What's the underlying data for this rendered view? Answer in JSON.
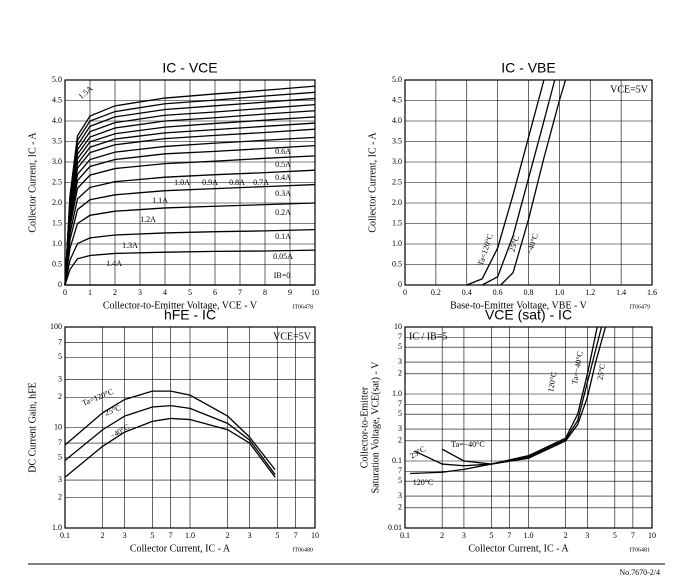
{
  "chart_data": [
    {
      "type": "line",
      "title": "IC - VCE",
      "xlabel": "Collector-to-Emitter Voltage, VCE - V",
      "ylabel": "Collector Current, IC - A",
      "code": "IT06478",
      "color": "#000000",
      "grid": true,
      "xlim": [
        0,
        10
      ],
      "xticks": [
        0,
        1,
        2,
        3,
        4,
        5,
        6,
        7,
        8,
        9,
        10
      ],
      "ylim": [
        0,
        5
      ],
      "yticks": [
        0,
        0.5,
        {
          "value": 1,
          "label": "1.0"
        },
        1.5,
        {
          "value": 2,
          "label": "2.0"
        },
        2.5,
        {
          "value": 3,
          "label": "3.0"
        },
        3.5,
        {
          "value": 4,
          "label": "4.0"
        },
        4.5,
        {
          "value": 5,
          "label": "5.0"
        }
      ],
      "x": [
        0,
        0.2,
        0.5,
        1,
        2,
        4,
        6,
        8,
        10
      ],
      "series": [
        {
          "name": "0.05A",
          "values": [
            0,
            0.38,
            0.64,
            0.72,
            0.77,
            0.8,
            0.82,
            0.83,
            0.85
          ]
        },
        {
          "name": "0.1A",
          "values": [
            0,
            0.61,
            1.01,
            1.15,
            1.22,
            1.27,
            1.3,
            1.32,
            1.35
          ]
        },
        {
          "name": "0.2A",
          "values": [
            0,
            0.9,
            1.5,
            1.7,
            1.8,
            1.88,
            1.92,
            1.96,
            2.0
          ]
        },
        {
          "name": "0.3A",
          "values": [
            0,
            1.1,
            1.84,
            2.08,
            2.2,
            2.3,
            2.35,
            2.4,
            2.45
          ]
        },
        {
          "name": "0.4A",
          "values": [
            0,
            1.26,
            2.1,
            2.38,
            2.52,
            2.63,
            2.69,
            2.74,
            2.8
          ]
        },
        {
          "name": "0.5A",
          "values": [
            0,
            1.42,
            2.36,
            2.68,
            2.84,
            2.96,
            3.02,
            3.09,
            3.15
          ]
        },
        {
          "name": "0.6A",
          "values": [
            0,
            1.53,
            2.55,
            2.89,
            3.06,
            3.2,
            3.26,
            3.33,
            3.4
          ]
        },
        {
          "name": "0.7A",
          "values": [
            0,
            1.62,
            2.7,
            3.06,
            3.24,
            3.38,
            3.46,
            3.53,
            3.6
          ]
        },
        {
          "name": "0.8A",
          "values": [
            0,
            1.71,
            2.85,
            3.23,
            3.42,
            3.57,
            3.65,
            3.72,
            3.8
          ]
        },
        {
          "name": "0.9A",
          "values": [
            0,
            1.78,
            2.96,
            3.36,
            3.56,
            3.71,
            3.79,
            3.87,
            3.95
          ]
        },
        {
          "name": "1.0A",
          "values": [
            0,
            1.85,
            3.08,
            3.49,
            3.69,
            3.85,
            3.94,
            4.02,
            4.1
          ]
        },
        {
          "name": "1.1A",
          "values": [
            0,
            1.91,
            3.19,
            3.61,
            3.83,
            4.0,
            4.08,
            4.17,
            4.25
          ]
        },
        {
          "name": "1.2A",
          "values": [
            0,
            1.98,
            3.3,
            3.74,
            3.96,
            4.14,
            4.22,
            4.31,
            4.4
          ]
        },
        {
          "name": "1.3A",
          "values": [
            0,
            2.05,
            3.41,
            3.87,
            4.1,
            4.28,
            4.37,
            4.46,
            4.55
          ]
        },
        {
          "name": "1.4A",
          "values": [
            0,
            2.12,
            3.53,
            4.0,
            4.23,
            4.42,
            4.51,
            4.61,
            4.7
          ]
        },
        {
          "name": "1.5A",
          "values": [
            0,
            2.18,
            3.64,
            4.12,
            4.37,
            4.56,
            4.66,
            4.75,
            4.85
          ]
        },
        {
          "name": "IB=0",
          "values": [
            0,
            0,
            0,
            0,
            0,
            0,
            0,
            0,
            0
          ]
        }
      ]
    },
    {
      "type": "line",
      "title": "IC - VBE",
      "xlabel": "Base-to-Emitter Voltage, VBE - V",
      "ylabel": "Collector Current, IC - A",
      "code": "IT06479",
      "annotation": "VCE=5V",
      "color": "#000000",
      "grid": true,
      "xlim": [
        0,
        1.6
      ],
      "xticks": [
        0,
        0.2,
        0.4,
        0.6,
        0.8,
        {
          "value": 1,
          "label": "1.0"
        },
        1.2,
        1.4,
        1.6
      ],
      "ylim": [
        0,
        5
      ],
      "yticks": [
        0,
        0.5,
        {
          "value": 1,
          "label": "1.0"
        },
        1.5,
        {
          "value": 2,
          "label": "2.0"
        },
        2.5,
        {
          "value": 3,
          "label": "3.0"
        },
        3.5,
        {
          "value": 4,
          "label": "4.0"
        },
        4.5,
        {
          "value": 5,
          "label": "5.0"
        }
      ],
      "series": [
        {
          "name": "Ta=120°C",
          "x": [
            0.4,
            0.5,
            0.6,
            0.7,
            0.8,
            0.9
          ],
          "values": [
            0,
            0.15,
            0.9,
            2.2,
            3.6,
            5.0
          ]
        },
        {
          "name": "25°C",
          "x": [
            0.5,
            0.6,
            0.7,
            0.8,
            0.9,
            0.97
          ],
          "values": [
            0,
            0.2,
            1.2,
            2.6,
            4.0,
            5.0
          ]
        },
        {
          "name": "−40°C",
          "x": [
            0.62,
            0.7,
            0.8,
            0.9,
            1.0,
            1.04
          ],
          "values": [
            0,
            0.3,
            1.6,
            3.1,
            4.5,
            5.0
          ]
        }
      ]
    },
    {
      "type": "line",
      "title": "hFE - IC",
      "xlabel": "Collector Current, IC - A",
      "ylabel": "DC Current Gain, hFE",
      "code": "IT06480",
      "annotation": "VCE=5V",
      "color": "#000000",
      "grid": true,
      "xscale": "log",
      "yscale": "log",
      "xlim": [
        0.1,
        10
      ],
      "xticks": [
        0.1,
        {
          "value": 0.2,
          "label": "2"
        },
        {
          "value": 0.3,
          "label": "3"
        },
        {
          "value": 0.5,
          "label": "5"
        },
        {
          "value": 0.7,
          "label": "7"
        },
        {
          "value": 1,
          "label": "1.0"
        },
        2,
        3,
        5,
        7,
        10
      ],
      "ylim": [
        1,
        100
      ],
      "yticks": [
        {
          "value": 1,
          "label": "1.0"
        },
        2,
        3,
        5,
        7,
        10,
        {
          "value": 20,
          "label": "2"
        },
        {
          "value": 30,
          "label": "3"
        },
        {
          "value": 50,
          "label": "5"
        },
        {
          "value": 70,
          "label": "7"
        },
        100
      ],
      "x": [
        0.1,
        0.2,
        0.3,
        0.5,
        0.7,
        1,
        2,
        3,
        4.8
      ],
      "series": [
        {
          "name": "Ta=120°C",
          "values": [
            6.7,
            14,
            19,
            23,
            23,
            21,
            13,
            8,
            3.8
          ]
        },
        {
          "name": "25°C",
          "values": [
            4.7,
            9.5,
            13,
            16,
            16.5,
            15.5,
            11,
            7.5,
            3.4
          ]
        },
        {
          "name": "−40°C",
          "values": [
            3.2,
            6.5,
            9,
            11.5,
            12.3,
            12,
            9.5,
            7,
            3.2
          ]
        }
      ]
    },
    {
      "type": "line",
      "title": "VCE (sat) - IC",
      "xlabel": "Collector Current, IC - A",
      "ylabel": [
        "Collector-to-Emitter",
        "Saturation Voltage, VCE(sat) - V"
      ],
      "code": "IT06481",
      "annotation": "IC / IB=5",
      "color": "#000000",
      "grid": true,
      "xscale": "log",
      "yscale": "log",
      "xlim": [
        0.1,
        10
      ],
      "xticks": [
        0.1,
        {
          "value": 0.2,
          "label": "2"
        },
        {
          "value": 0.3,
          "label": "3"
        },
        {
          "value": 0.5,
          "label": "5"
        },
        {
          "value": 0.7,
          "label": "7"
        },
        {
          "value": 1,
          "label": "1.0"
        },
        2,
        3,
        5,
        7,
        10
      ],
      "ylim": [
        0.01,
        10
      ],
      "yticks": [
        0.01,
        {
          "value": 0.02,
          "label": "2"
        },
        {
          "value": 0.03,
          "label": "3"
        },
        {
          "value": 0.05,
          "label": "5"
        },
        {
          "value": 0.07,
          "label": "7"
        },
        0.1,
        {
          "value": 0.2,
          "label": "2"
        },
        {
          "value": 0.3,
          "label": "3"
        },
        {
          "value": 0.5,
          "label": "5"
        },
        {
          "value": 0.7,
          "label": "7"
        },
        {
          "value": 1,
          "label": "1.0"
        },
        2,
        3,
        5,
        7,
        10
      ],
      "series": [
        {
          "name": "120°C",
          "x": [
            0.11,
            0.2,
            0.3,
            0.5,
            1,
            2,
            2.5,
            3,
            3.6
          ],
          "values": [
            0.065,
            0.068,
            0.075,
            0.09,
            0.12,
            0.22,
            0.5,
            2,
            10
          ]
        },
        {
          "name": "Ta=−40°C",
          "x": [
            0.2,
            0.3,
            0.5,
            1,
            2,
            2.5,
            3,
            3.5,
            4.2
          ],
          "values": [
            0.15,
            0.1,
            0.09,
            0.11,
            0.2,
            0.35,
            0.9,
            3,
            10
          ]
        },
        {
          "name": "25°C",
          "x": [
            0.12,
            0.2,
            0.3,
            0.5,
            1,
            2,
            2.5,
            3,
            3.9
          ],
          "values": [
            0.14,
            0.09,
            0.085,
            0.09,
            0.115,
            0.21,
            0.4,
            1.5,
            10
          ]
        }
      ]
    }
  ],
  "footer": "No.7670-2/4"
}
